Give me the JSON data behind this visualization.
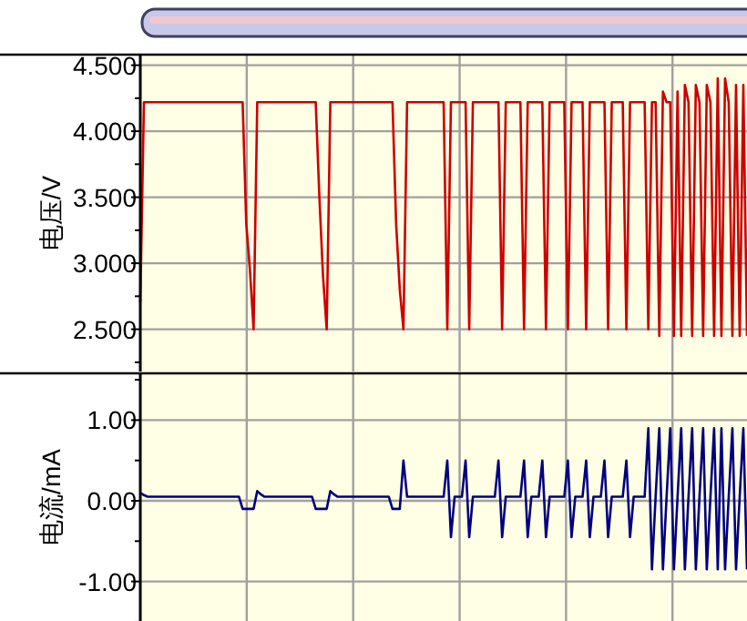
{
  "chart_data": [
    {
      "type": "line",
      "ylabel": "电压/V",
      "categories": [
        null,
        null,
        null,
        null,
        null,
        null,
        null,
        null,
        null,
        null,
        null,
        null,
        null,
        null,
        null,
        null,
        null,
        null,
        null,
        null,
        null,
        null,
        null,
        null,
        null,
        null,
        null,
        null,
        null,
        null,
        null,
        null,
        null,
        null,
        null,
        null,
        null,
        null,
        null,
        null,
        null,
        null,
        null,
        null,
        null,
        null,
        null,
        null,
        null,
        null,
        null,
        null,
        null,
        null,
        null,
        null,
        null,
        null,
        null,
        null,
        null,
        null,
        null,
        null,
        null,
        null,
        null,
        null,
        null,
        null,
        null,
        null,
        null,
        null,
        null,
        null,
        null,
        null,
        null,
        null,
        null,
        null,
        null,
        null,
        null,
        null,
        null,
        null,
        null,
        null,
        null,
        null,
        null,
        null,
        null,
        null,
        null,
        null,
        null,
        null,
        null,
        null,
        null,
        null,
        null,
        null,
        null,
        null,
        null,
        null,
        null,
        null,
        null,
        null,
        null,
        null,
        null,
        null,
        null,
        null,
        null,
        null,
        null,
        null,
        null,
        null,
        null,
        null,
        null,
        null,
        null,
        null,
        null,
        null,
        null,
        null,
        null,
        null,
        null,
        null,
        null,
        null,
        null,
        null,
        null,
        null,
        null,
        null,
        null,
        null,
        null,
        null,
        null,
        null,
        null,
        null,
        null,
        null,
        null,
        null,
        null,
        null,
        null,
        null,
        null,
        null,
        null
      ],
      "series": [
        {
          "color": "#cc0000",
          "values": [
            2.7,
            4.22,
            4.22,
            4.22,
            4.22,
            4.22,
            4.22,
            4.22,
            4.22,
            4.22,
            4.22,
            4.22,
            4.22,
            4.22,
            4.22,
            4.22,
            4.22,
            4.22,
            4.22,
            4.22,
            4.22,
            4.22,
            4.22,
            4.22,
            4.22,
            4.22,
            4.22,
            4.22,
            4.22,
            3.3,
            2.95,
            2.5,
            4.22,
            4.22,
            4.22,
            4.22,
            4.22,
            4.22,
            4.22,
            4.22,
            4.22,
            4.22,
            4.22,
            4.22,
            4.22,
            4.22,
            4.22,
            4.22,
            4.22,
            3.5,
            2.9,
            2.5,
            4.22,
            4.22,
            4.22,
            4.22,
            4.22,
            4.22,
            4.22,
            4.22,
            4.22,
            4.22,
            4.22,
            4.22,
            4.22,
            4.22,
            4.22,
            4.22,
            4.22,
            4.22,
            3.3,
            2.8,
            2.5,
            4.22,
            4.22,
            4.22,
            4.22,
            4.22,
            4.22,
            4.22,
            4.22,
            4.22,
            4.22,
            4.22,
            2.5,
            4.22,
            4.22,
            4.22,
            4.22,
            4.22,
            2.5,
            4.22,
            4.22,
            4.22,
            4.22,
            4.22,
            4.22,
            4.22,
            4.22,
            2.5,
            4.22,
            4.22,
            4.22,
            4.22,
            4.22,
            2.5,
            4.22,
            4.22,
            4.22,
            4.22,
            4.22,
            2.5,
            4.22,
            4.22,
            4.22,
            4.22,
            4.22,
            2.5,
            4.22,
            4.22,
            4.22,
            4.22,
            2.5,
            4.22,
            4.22,
            4.22,
            4.22,
            4.22,
            2.5,
            4.22,
            4.22,
            4.22,
            4.22,
            2.5,
            4.22,
            4.22,
            4.22,
            4.22,
            4.22,
            2.5,
            4.22,
            4.22,
            2.45,
            4.3,
            4.22,
            4.22,
            2.45,
            4.3,
            2.45,
            4.35,
            4.22,
            2.45,
            4.35,
            4.22,
            2.45,
            4.35,
            4.22,
            2.45,
            4.4,
            2.45,
            4.4,
            4.22,
            2.45,
            4.35,
            2.45,
            4.35,
            2.45
          ]
        }
      ],
      "ylim": [
        2.18,
        4.58
      ],
      "yticks": [
        {
          "value": 2.25,
          "label": null
        },
        {
          "value": 2.5,
          "label": "2.500"
        },
        {
          "value": 2.75,
          "label": null
        },
        {
          "value": 3,
          "label": "3.000"
        },
        {
          "value": 3.25,
          "label": null
        },
        {
          "value": 3.5,
          "label": "3.500"
        },
        {
          "value": 3.75,
          "label": null
        },
        {
          "value": 4,
          "label": "4.000"
        },
        {
          "value": 4.25,
          "label": null
        },
        {
          "value": 4.5,
          "label": "4.500"
        }
      ],
      "grid": true
    },
    {
      "type": "line",
      "ylabel": "电流/mA",
      "categories": [
        null,
        null,
        null,
        null,
        null,
        null,
        null,
        null,
        null,
        null,
        null,
        null,
        null,
        null,
        null,
        null,
        null,
        null,
        null,
        null,
        null,
        null,
        null,
        null,
        null,
        null,
        null,
        null,
        null,
        null,
        null,
        null,
        null,
        null,
        null,
        null,
        null,
        null,
        null,
        null,
        null,
        null,
        null,
        null,
        null,
        null,
        null,
        null,
        null,
        null,
        null,
        null,
        null,
        null,
        null,
        null,
        null,
        null,
        null,
        null,
        null,
        null,
        null,
        null,
        null,
        null,
        null,
        null,
        null,
        null,
        null,
        null,
        null,
        null,
        null,
        null,
        null,
        null,
        null,
        null,
        null,
        null,
        null,
        null,
        null,
        null,
        null,
        null,
        null,
        null,
        null,
        null,
        null,
        null,
        null,
        null,
        null,
        null,
        null,
        null,
        null,
        null,
        null,
        null,
        null,
        null,
        null,
        null,
        null,
        null,
        null,
        null,
        null,
        null,
        null,
        null,
        null,
        null,
        null,
        null,
        null,
        null,
        null,
        null,
        null,
        null,
        null,
        null,
        null,
        null,
        null,
        null,
        null,
        null,
        null,
        null,
        null,
        null,
        null,
        null,
        null,
        null,
        null,
        null,
        null,
        null,
        null,
        null,
        null,
        null,
        null,
        null,
        null,
        null,
        null,
        null,
        null,
        null,
        null,
        null,
        null,
        null,
        null,
        null,
        null,
        null,
        null
      ],
      "series": [
        {
          "color": "#000080",
          "values": [
            0.1,
            0.07,
            0.05,
            0.05,
            0.05,
            0.05,
            0.05,
            0.05,
            0.05,
            0.05,
            0.05,
            0.05,
            0.05,
            0.05,
            0.05,
            0.05,
            0.05,
            0.05,
            0.05,
            0.05,
            0.05,
            0.05,
            0.05,
            0.05,
            0.05,
            0.05,
            0.05,
            0.05,
            -0.1,
            -0.1,
            -0.1,
            -0.1,
            0.12,
            0.08,
            0.05,
            0.05,
            0.05,
            0.05,
            0.05,
            0.05,
            0.05,
            0.05,
            0.05,
            0.05,
            0.05,
            0.05,
            0.05,
            0.05,
            -0.1,
            -0.1,
            -0.1,
            -0.1,
            0.12,
            0.08,
            0.05,
            0.05,
            0.05,
            0.05,
            0.05,
            0.05,
            0.05,
            0.05,
            0.05,
            0.05,
            0.05,
            0.05,
            0.05,
            0.05,
            0.05,
            -0.1,
            -0.1,
            -0.1,
            0.5,
            0.05,
            0.05,
            0.05,
            0.05,
            0.05,
            0.05,
            0.05,
            0.05,
            0.05,
            0.05,
            0.05,
            0.5,
            -0.45,
            0.05,
            0.05,
            0.05,
            0.5,
            -0.45,
            0.05,
            0.05,
            0.05,
            0.05,
            0.05,
            0.05,
            0.05,
            0.5,
            -0.45,
            0.05,
            0.05,
            0.05,
            0.05,
            0.05,
            0.5,
            -0.45,
            0.05,
            0.05,
            0.05,
            0.5,
            -0.45,
            0.05,
            0.05,
            0.05,
            0.05,
            0.05,
            0.5,
            -0.45,
            0.05,
            0.05,
            0.05,
            0.5,
            -0.45,
            0.05,
            0.05,
            0.05,
            0.5,
            -0.45,
            0.05,
            0.05,
            0.05,
            0.05,
            0.5,
            -0.45,
            0.05,
            0.05,
            0.05,
            0.05,
            0.9,
            -0.85,
            0.05,
            0.9,
            -0.85,
            0.05,
            0.9,
            -0.85,
            0.05,
            0.9,
            -0.85,
            0.05,
            0.9,
            -0.85,
            0.05,
            0.9,
            -0.85,
            0.05,
            0.9,
            -0.85,
            0.9,
            -0.85,
            0.05,
            0.9,
            -0.85,
            0.05,
            0.9,
            -0.85
          ]
        }
      ],
      "ylim": [
        -1.58,
        1.58
      ],
      "yticks": [
        {
          "value": -1.5,
          "label": null
        },
        {
          "value": -1,
          "label": "-1.00"
        },
        {
          "value": -0.5,
          "label": null
        },
        {
          "value": 0,
          "label": "0.00"
        },
        {
          "value": 0.5,
          "label": null
        },
        {
          "value": 1,
          "label": "1.00"
        },
        {
          "value": 1.5,
          "label": null
        }
      ],
      "grid": true
    }
  ]
}
